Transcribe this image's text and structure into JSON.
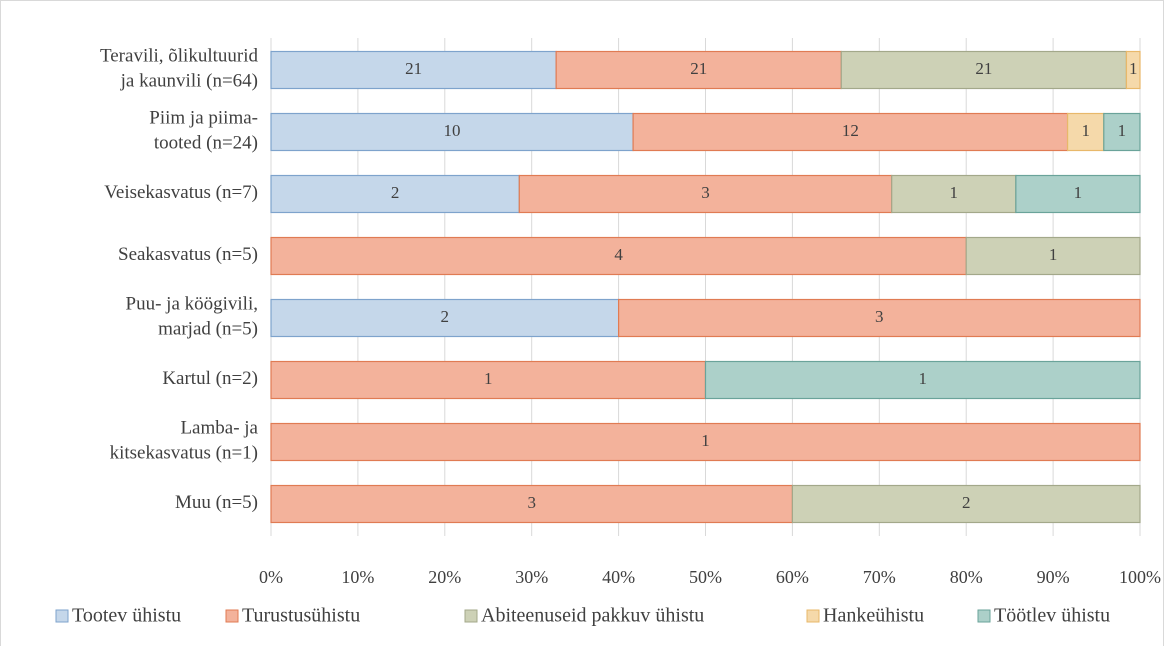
{
  "chart_data": {
    "type": "bar",
    "orientation": "horizontal",
    "stacked": "percent",
    "categories": [
      [
        "Teravili, õlikultuurid",
        "ja kaunvili (n=64)"
      ],
      [
        "Piim ja piima-",
        "tooted (n=24)"
      ],
      [
        "Veisekasvatus (n=7)"
      ],
      [
        "Seakasvatus (n=5)"
      ],
      [
        "Puu- ja köögivili,",
        "marjad (n=5)"
      ],
      [
        "Kartul (n=2)"
      ],
      [
        "Lamba- ja",
        "kitsekasvatus (n=1)"
      ],
      [
        "Muu (n=5)"
      ]
    ],
    "series": [
      {
        "name": "Tootev ühistu",
        "color": "#c5d7ea",
        "stroke": "#7ea3cc",
        "values": [
          21,
          10,
          2,
          0,
          2,
          0,
          0,
          0
        ]
      },
      {
        "name": "Turustusühistu",
        "color": "#f3b29b",
        "stroke": "#e07b53",
        "values": [
          21,
          12,
          3,
          4,
          3,
          1,
          1,
          3
        ]
      },
      {
        "name": "Abiteenuseid pakkuv ühistu",
        "color": "#cdd1b6",
        "stroke": "#a3a88a",
        "values": [
          21,
          0,
          1,
          1,
          0,
          0,
          0,
          2
        ]
      },
      {
        "name": "Hankeühistu",
        "color": "#f5d9aa",
        "stroke": "#e8b86a",
        "values": [
          1,
          1,
          0,
          0,
          0,
          0,
          0,
          0
        ]
      },
      {
        "name": "Töötlev ühistu",
        "color": "#acd0c9",
        "stroke": "#6aa39a",
        "values": [
          0,
          1,
          1,
          0,
          0,
          1,
          0,
          0
        ]
      }
    ],
    "xlim": [
      0,
      100
    ],
    "xticks": [
      {
        "value": 0,
        "label": "0%"
      },
      {
        "value": 10,
        "label": "10%"
      },
      {
        "value": 20,
        "label": "20%"
      },
      {
        "value": 30,
        "label": "30%"
      },
      {
        "value": 40,
        "label": "40%"
      },
      {
        "value": 50,
        "label": "50%"
      },
      {
        "value": 60,
        "label": "60%"
      },
      {
        "value": 70,
        "label": "70%"
      },
      {
        "value": 80,
        "label": "80%"
      },
      {
        "value": 90,
        "label": "90%"
      },
      {
        "value": 100,
        "label": "100%"
      }
    ],
    "grid": true,
    "legend": "bottom"
  }
}
